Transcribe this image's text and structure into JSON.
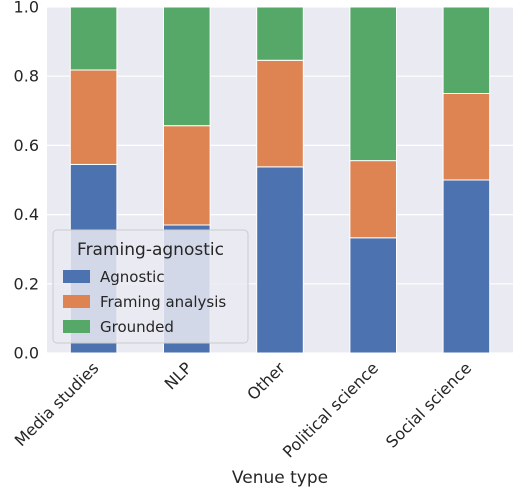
{
  "chart_data": {
    "type": "bar",
    "stacked": true,
    "categories": [
      "Media studies",
      "NLP",
      "Other",
      "Political science",
      "Social science"
    ],
    "series": [
      {
        "name": "Agnostic",
        "color": "#4c72b0",
        "values": [
          0.545,
          0.37,
          0.538,
          0.333,
          0.5
        ]
      },
      {
        "name": "Framing analysis",
        "color": "#dd8452",
        "values": [
          0.273,
          0.287,
          0.308,
          0.223,
          0.25
        ]
      },
      {
        "name": "Grounded",
        "color": "#55a868",
        "values": [
          0.182,
          0.343,
          0.154,
          0.444,
          0.25
        ]
      }
    ],
    "xlabel": "Venue type",
    "ylabel": "",
    "ylim": [
      0,
      1.0
    ],
    "yticks": [
      "0.0",
      "0.2",
      "0.4",
      "0.6",
      "0.8",
      "1.0"
    ],
    "grid": true,
    "background": "#eaeaf2",
    "legend": {
      "title": "Framing-agnostic",
      "placement": "lower-left"
    }
  }
}
